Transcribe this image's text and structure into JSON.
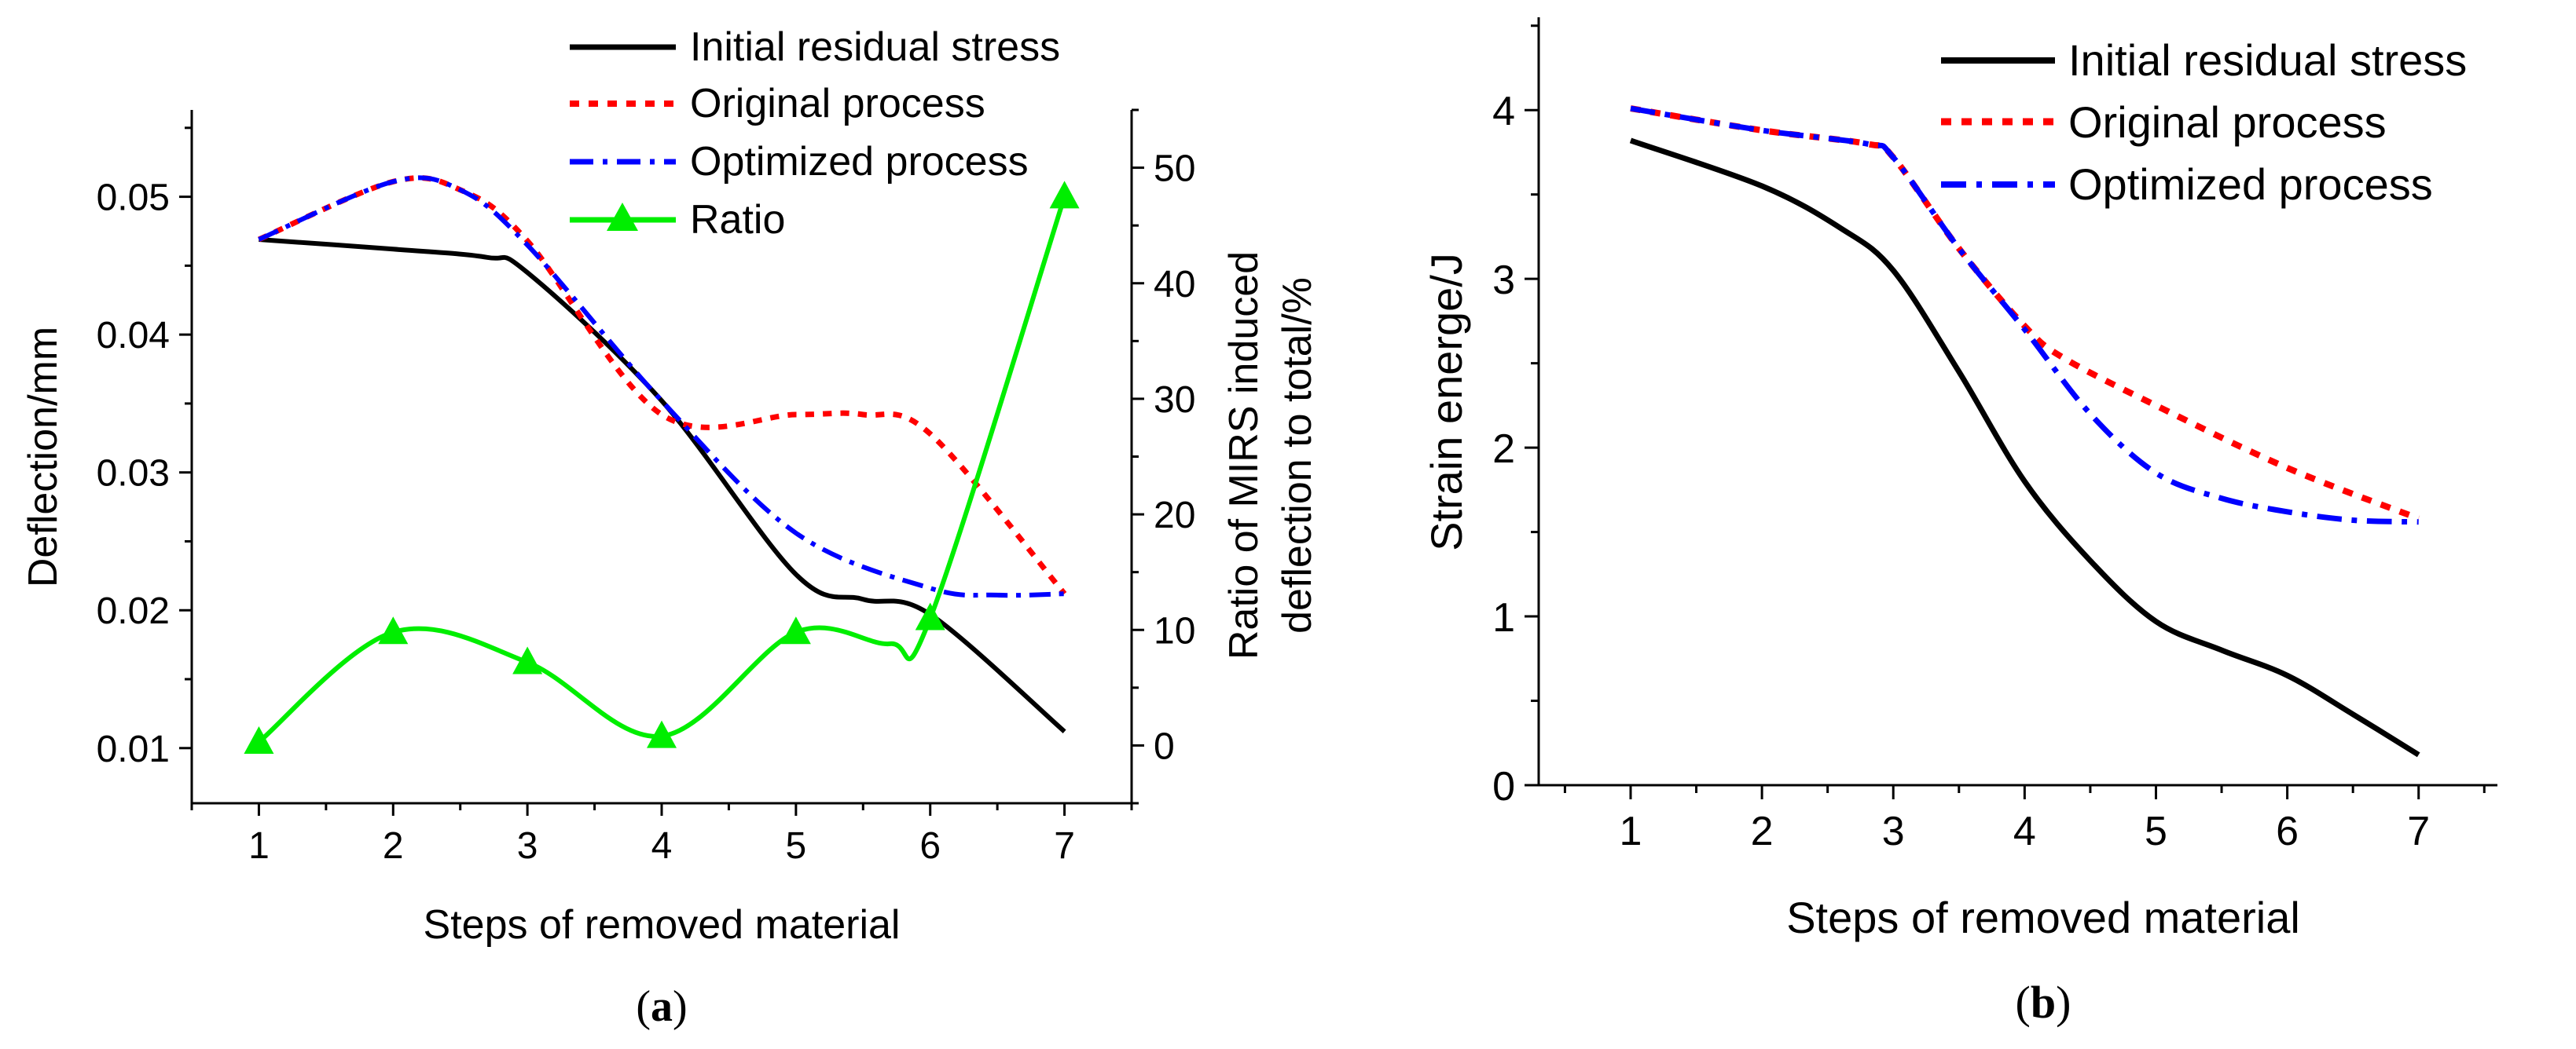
{
  "chart_data": [
    {
      "type": "line",
      "panel_label": "(a)",
      "panel_letter": "a",
      "xlabel": "Steps of removed material",
      "ylabel": "Deflection/mm",
      "ylabel_right_line1": "Ratio of MIRS induced",
      "ylabel_right_line2": "deflection to total/%",
      "x": [
        1,
        2,
        3,
        4,
        5,
        6,
        7
      ],
      "xlim": [
        0.5,
        7.5
      ],
      "ylim": [
        0.006,
        0.0563
      ],
      "y2lim": [
        -5,
        55
      ],
      "x_ticks": [
        1,
        2,
        3,
        4,
        5,
        6,
        7
      ],
      "y_ticks": [
        0.01,
        0.02,
        0.03,
        0.04,
        0.05
      ],
      "y_tick_labels": [
        "0.01",
        "0.02",
        "0.03",
        "0.04",
        "0.05"
      ],
      "y2_ticks": [
        0,
        10,
        20,
        30,
        40,
        50
      ],
      "series": [
        {
          "name": "Initial residual stress",
          "axis": "left",
          "color": "#000000",
          "dash": "solid",
          "points": [
            [
              1,
              0.0469
            ],
            [
              2,
              0.0462
            ],
            [
              2.7,
              0.0456
            ],
            [
              3,
              0.0445
            ],
            [
              4,
              0.0352
            ],
            [
              5,
              0.0226
            ],
            [
              5.5,
              0.0208
            ],
            [
              6,
              0.0197
            ],
            [
              7,
              0.0112
            ]
          ]
        },
        {
          "name": "Original process",
          "axis": "left",
          "color": "#ff0000",
          "dash": "dot",
          "points": [
            [
              1,
              0.0469
            ],
            [
              2,
              0.0511
            ],
            [
              2.5,
              0.0505
            ],
            [
              3,
              0.0468
            ],
            [
              4,
              0.0342
            ],
            [
              5,
              0.0342
            ],
            [
              5.5,
              0.0342
            ],
            [
              6,
              0.0328
            ],
            [
              7,
              0.0212
            ]
          ]
        },
        {
          "name": "Optimized process",
          "axis": "left",
          "color": "#0000ff",
          "dash": "dashdot",
          "points": [
            [
              1,
              0.0469
            ],
            [
              2,
              0.0511
            ],
            [
              2.5,
              0.0505
            ],
            [
              3,
              0.0465
            ],
            [
              4,
              0.0352
            ],
            [
              5,
              0.0256
            ],
            [
              6,
              0.0216
            ],
            [
              6.5,
              0.0211
            ],
            [
              7,
              0.0212
            ]
          ]
        },
        {
          "name": "Ratio",
          "axis": "right",
          "color": "#00ee00",
          "dash": "solid",
          "marker": "triangle",
          "points": [
            [
              1,
              0.3
            ],
            [
              2,
              9.8
            ],
            [
              3,
              7.2
            ],
            [
              4,
              0.8
            ],
            [
              5,
              9.8
            ],
            [
              5.7,
              8.8
            ],
            [
              6,
              11
            ],
            [
              7,
              47.5
            ]
          ],
          "marker_x": [
            1,
            2,
            3,
            4,
            5,
            6,
            7
          ]
        }
      ],
      "legend_position": "top-right"
    },
    {
      "type": "line",
      "panel_label": "(b)",
      "panel_letter": "b",
      "xlabel": "Steps of removed material",
      "ylabel": "Strain energe/J",
      "x": [
        1,
        2,
        3,
        4,
        5,
        6,
        7
      ],
      "xlim": [
        0.3,
        7.6
      ],
      "ylim": [
        0,
        4.55
      ],
      "x_ticks": [
        1,
        2,
        3,
        4,
        5,
        6,
        7
      ],
      "y_ticks": [
        0,
        1,
        2,
        3,
        4
      ],
      "series": [
        {
          "name": "Initial residual stress",
          "color": "#000000",
          "dash": "solid",
          "points": [
            [
              1,
              3.82
            ],
            [
              2,
              3.55
            ],
            [
              2.6,
              3.3
            ],
            [
              3,
              3.05
            ],
            [
              3.5,
              2.45
            ],
            [
              4,
              1.8
            ],
            [
              4.5,
              1.33
            ],
            [
              5,
              0.97
            ],
            [
              5.5,
              0.8
            ],
            [
              6,
              0.65
            ],
            [
              6.5,
              0.42
            ],
            [
              7,
              0.18
            ]
          ]
        },
        {
          "name": "Original process",
          "color": "#ff0000",
          "dash": "dot",
          "points": [
            [
              1,
              4.01
            ],
            [
              2,
              3.88
            ],
            [
              2.8,
              3.8
            ],
            [
              3,
              3.72
            ],
            [
              3.5,
              3.18
            ],
            [
              4,
              2.72
            ],
            [
              4.3,
              2.53
            ],
            [
              5,
              2.25
            ],
            [
              6,
              1.88
            ],
            [
              7,
              1.58
            ]
          ]
        },
        {
          "name": "Optimized process",
          "color": "#0000ff",
          "dash": "dashdot",
          "points": [
            [
              1,
              4.01
            ],
            [
              2,
              3.88
            ],
            [
              2.8,
              3.8
            ],
            [
              3,
              3.72
            ],
            [
              3.5,
              3.18
            ],
            [
              4,
              2.7
            ],
            [
              4.5,
              2.2
            ],
            [
              5,
              1.85
            ],
            [
              5.5,
              1.7
            ],
            [
              6,
              1.62
            ],
            [
              6.5,
              1.57
            ],
            [
              7,
              1.56
            ]
          ]
        }
      ],
      "legend_position": "top-right"
    }
  ]
}
